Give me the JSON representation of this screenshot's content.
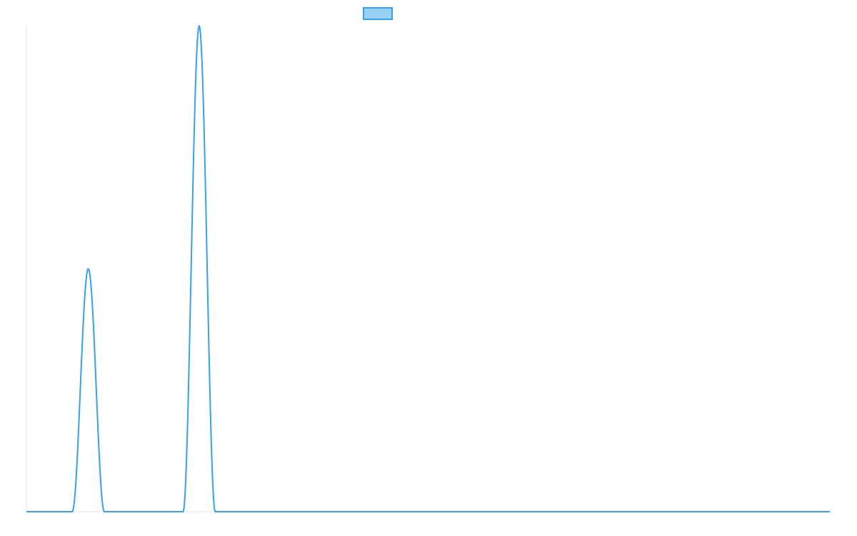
{
  "chart_data": {
    "type": "line",
    "title": "",
    "xlabel": "",
    "ylabel": "",
    "grid": false,
    "legend_position": "top",
    "x": [
      0,
      5,
      10,
      15,
      20,
      25,
      30,
      35,
      40,
      45,
      50,
      55,
      60,
      65,
      70,
      75,
      80,
      85,
      90,
      95,
      100
    ],
    "xlim": [
      0,
      100
    ],
    "ylim": [
      0,
      1
    ],
    "series": [
      {
        "name": "",
        "color": "#36a2eb",
        "fill": "#9ad0f5",
        "peaks": [
          {
            "center": 7.7,
            "half_width": 2.0,
            "height": 0.5
          },
          {
            "center": 21.5,
            "half_width": 2.0,
            "height": 1.0
          }
        ]
      }
    ]
  },
  "legend": {
    "label": ""
  }
}
